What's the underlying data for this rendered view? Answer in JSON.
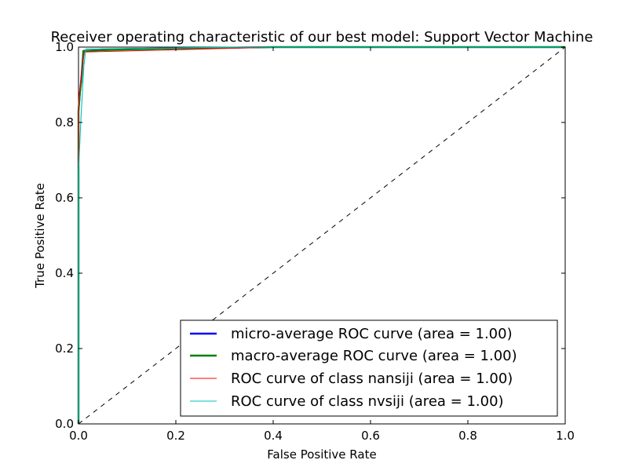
{
  "chart_data": {
    "type": "line",
    "title": "Receiver operating characteristic of our best model: Support Vector Machine",
    "xlabel": "False Positive Rate",
    "ylabel": "True Positive Rate",
    "xlim": [
      0.0,
      1.0
    ],
    "ylim": [
      0.0,
      1.0
    ],
    "xticks": [
      0.0,
      0.2,
      0.4,
      0.6,
      0.8,
      1.0
    ],
    "yticks": [
      0.0,
      0.2,
      0.4,
      0.6,
      0.8,
      1.0
    ],
    "xtick_labels": [
      "0.0",
      "0.2",
      "0.4",
      "0.6",
      "0.8",
      "1.0"
    ],
    "ytick_labels": [
      "0.0",
      "0.2",
      "0.4",
      "0.6",
      "0.8",
      "1.0"
    ],
    "grid": false,
    "legend_position": "lower-right",
    "series": [
      {
        "name": "micro-average ROC curve (area = 1.00)",
        "color": "#0000ff",
        "style": "solid-thick",
        "points": [
          [
            0.0,
            0.0
          ],
          [
            0.0,
            0.83
          ],
          [
            0.003,
            0.88
          ],
          [
            0.006,
            0.92
          ],
          [
            0.01,
            0.99
          ],
          [
            0.1,
            0.995
          ],
          [
            0.4,
            1.0
          ],
          [
            1.0,
            1.0
          ]
        ]
      },
      {
        "name": "macro-average ROC curve (area = 1.00)",
        "color": "#008000",
        "style": "solid-thick",
        "points": [
          [
            0.0,
            0.0
          ],
          [
            0.0,
            0.83
          ],
          [
            0.003,
            0.88
          ],
          [
            0.006,
            0.91
          ],
          [
            0.01,
            0.99
          ],
          [
            0.05,
            0.992
          ],
          [
            0.2,
            0.997
          ],
          [
            0.4,
            1.0
          ],
          [
            1.0,
            1.0
          ]
        ]
      },
      {
        "name": "ROC curve of class nansiji (area = 1.00)",
        "color": "#ff0000",
        "style": "solid-thin",
        "points": [
          [
            0.0,
            0.0
          ],
          [
            0.0,
            0.85
          ],
          [
            0.004,
            0.9
          ],
          [
            0.008,
            0.95
          ],
          [
            0.012,
            0.987
          ],
          [
            0.2,
            0.993
          ],
          [
            0.4,
            1.0
          ],
          [
            1.0,
            1.0
          ]
        ]
      },
      {
        "name": "ROC curve of class nvsiji (area = 1.00)",
        "color": "#00bfbf",
        "style": "solid-thin",
        "points": [
          [
            0.0,
            0.0
          ],
          [
            0.0,
            0.67
          ],
          [
            0.005,
            0.81
          ],
          [
            0.011,
            0.95
          ],
          [
            0.015,
            0.995
          ],
          [
            0.35,
            1.0
          ],
          [
            1.0,
            1.0
          ]
        ]
      }
    ],
    "reference_line": {
      "color": "#000000",
      "style": "dashed",
      "points": [
        [
          0.0,
          0.0
        ],
        [
          1.0,
          1.0
        ]
      ]
    }
  }
}
